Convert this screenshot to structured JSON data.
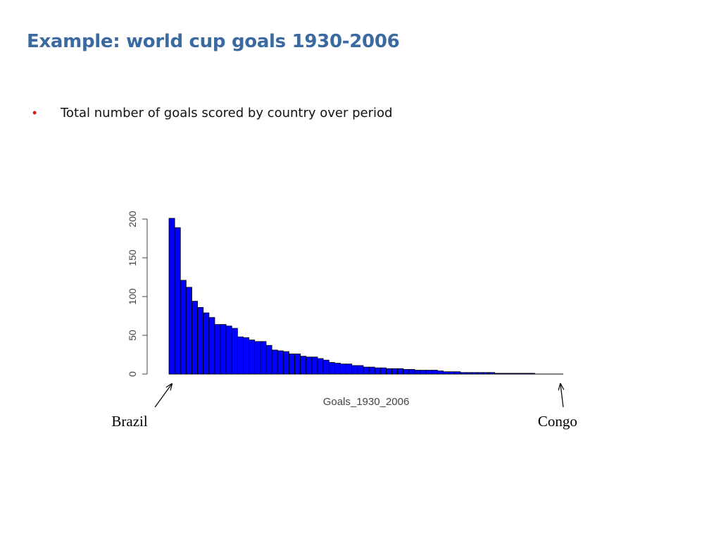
{
  "slide": {
    "title": "Example: world cup goals 1930-2006",
    "bullet": "Total number of goals scored by country over period",
    "accent_color": "#3a6aa0",
    "bullet_color": "#d02020"
  },
  "chart_data": {
    "type": "bar",
    "xlabel": "Goals_1930_2006",
    "ylabel": "",
    "ylim": [
      0,
      205
    ],
    "yticks": [
      0,
      50,
      100,
      150,
      200
    ],
    "bar_color": "#0000ff",
    "values": [
      201,
      189,
      121,
      112,
      94,
      86,
      79,
      73,
      64,
      64,
      62,
      59,
      48,
      47,
      44,
      42,
      42,
      37,
      31,
      30,
      29,
      26,
      26,
      23,
      22,
      22,
      20,
      18,
      15,
      14,
      13,
      13,
      11,
      11,
      9,
      9,
      8,
      8,
      7,
      7,
      7,
      6,
      6,
      5,
      5,
      5,
      5,
      4,
      3,
      3,
      3,
      2,
      2,
      2,
      2,
      2,
      2,
      1,
      1,
      1,
      1,
      1,
      1,
      1,
      0,
      0,
      0,
      0,
      0
    ],
    "annotations": [
      {
        "text": "Brazil",
        "target_index": 0
      },
      {
        "text": "Congo",
        "target_index": 68
      }
    ]
  }
}
